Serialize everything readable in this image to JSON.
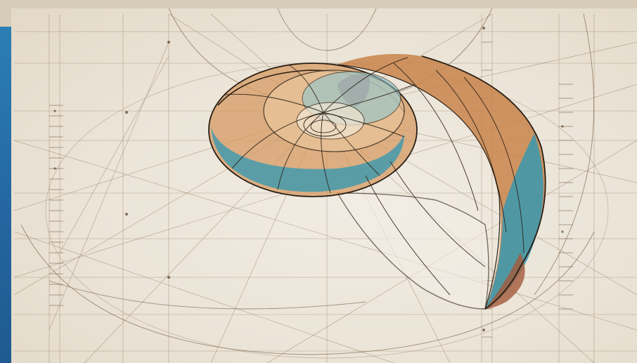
{
  "artwork": {
    "subject": "nautilus-shell",
    "colors": {
      "paper": "#efe9de",
      "ink": "#3a2a1c",
      "construction": "#8a6d50",
      "ochre": "#c8844a",
      "ochre_light": "#e3b98d",
      "teal": "#3a98b0",
      "teal_light": "#8fc6cf",
      "side_bar": "#2470a8"
    }
  }
}
